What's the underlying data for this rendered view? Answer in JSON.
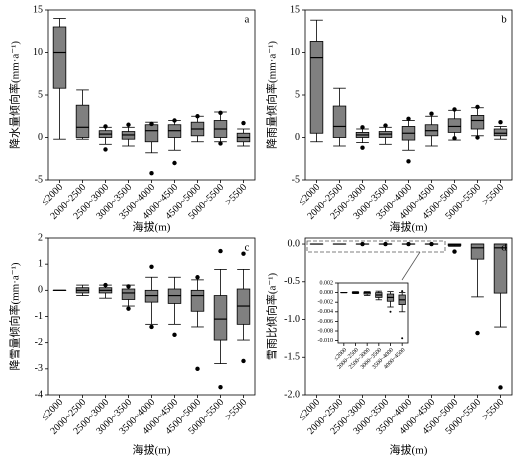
{
  "chart_data": [
    {
      "type": "box",
      "panel_label": "a",
      "ylabel": "降水量倾向率(mm·a⁻¹)",
      "xlabel": "海拔(m)",
      "categories": [
        "≤2000",
        "2000~2500",
        "2500~3000",
        "3000~3500",
        "3500~4000",
        "4000~4500",
        "4500~5000",
        "5000~5500",
        ">5500"
      ],
      "ylim": [
        -5,
        15
      ],
      "yticks": [
        -5,
        0,
        5,
        10,
        15
      ],
      "color": "#808080",
      "boxes": [
        {
          "low": -0.2,
          "q1": 5.8,
          "median": 10,
          "q3": 13,
          "high": 14,
          "outliers": []
        },
        {
          "low": -0.2,
          "q1": 0,
          "median": 1.2,
          "q3": 3.8,
          "high": 5.6,
          "outliers": []
        },
        {
          "low": -0.8,
          "q1": 0,
          "median": 0.4,
          "q3": 0.8,
          "high": 1.2,
          "outliers": [
            -1.4,
            1.3
          ]
        },
        {
          "low": -1,
          "q1": -0.2,
          "median": 0.3,
          "q3": 0.7,
          "high": 1.2,
          "outliers": [
            1.5
          ]
        },
        {
          "low": -1.8,
          "q1": -0.5,
          "median": 0.8,
          "q3": 1.5,
          "high": 1.8,
          "outliers": [
            -4.2,
            1.6
          ]
        },
        {
          "low": -1.5,
          "q1": 0,
          "median": 0.8,
          "q3": 1.5,
          "high": 2,
          "outliers": [
            -3,
            2
          ]
        },
        {
          "low": -0.5,
          "q1": 0.2,
          "median": 1,
          "q3": 1.8,
          "high": 2.5,
          "outliers": [
            2.5
          ]
        },
        {
          "low": -0.5,
          "q1": 0,
          "median": 1,
          "q3": 2,
          "high": 3,
          "outliers": [
            2.9,
            -0.7
          ]
        },
        {
          "low": -1,
          "q1": -0.5,
          "median": 0,
          "q3": 0.5,
          "high": 1,
          "outliers": [
            1.7
          ]
        }
      ]
    },
    {
      "type": "box",
      "panel_label": "b",
      "ylabel": "降雨量倾向率(mm·a⁻¹)",
      "xlabel": "海拔(m)",
      "categories": [
        "≤2000",
        "2000~2500",
        "2500~3000",
        "3000~3500",
        "3500~4000",
        "4000~4500",
        "4500~5000",
        "5000~5500",
        ">5500"
      ],
      "ylim": [
        -5,
        15
      ],
      "yticks": [
        -5,
        0,
        5,
        10,
        15
      ],
      "color": "#808080",
      "boxes": [
        {
          "low": -0.5,
          "q1": 0.5,
          "median": 9.4,
          "q3": 11.3,
          "high": 13.8,
          "outliers": []
        },
        {
          "low": -1,
          "q1": 0,
          "median": 1.3,
          "q3": 3.7,
          "high": 5.8,
          "outliers": []
        },
        {
          "low": -0.6,
          "q1": 0,
          "median": 0.3,
          "q3": 0.6,
          "high": 1,
          "outliers": [
            -1.2,
            1.2
          ]
        },
        {
          "low": -0.8,
          "q1": 0,
          "median": 0.4,
          "q3": 0.7,
          "high": 1.2,
          "outliers": [
            1.4
          ]
        },
        {
          "low": -1.5,
          "q1": -0.3,
          "median": 0.5,
          "q3": 1.3,
          "high": 2,
          "outliers": [
            -2.8,
            2.2
          ]
        },
        {
          "low": -1,
          "q1": 0.2,
          "median": 0.8,
          "q3": 1.5,
          "high": 2.5,
          "outliers": [
            2.8
          ]
        },
        {
          "low": -0.3,
          "q1": 0.6,
          "median": 1.3,
          "q3": 2.2,
          "high": 3.2,
          "outliers": [
            3.3,
            -0.1
          ]
        },
        {
          "low": 0.2,
          "q1": 1,
          "median": 2,
          "q3": 2.6,
          "high": 3.5,
          "outliers": [
            3.6,
            0
          ]
        },
        {
          "low": -0.2,
          "q1": 0.2,
          "median": 0.5,
          "q3": 1,
          "high": 1.3,
          "outliers": [
            1.8
          ]
        }
      ]
    },
    {
      "type": "box",
      "panel_label": "c",
      "ylabel": "降雪量倾向率(mm·a⁻¹)",
      "xlabel": "海拔(m)",
      "categories": [
        "≤2000",
        "2000~2500",
        "2500~3000",
        "3000~3500",
        "3500~4000",
        "4000~4500",
        "4500~5000",
        "5000~5500",
        ">5500"
      ],
      "ylim": [
        -4,
        2
      ],
      "yticks": [
        -4,
        -3,
        -2,
        -1,
        0,
        1,
        2
      ],
      "color": "#808080",
      "boxes": [
        {
          "low": 0,
          "q1": 0,
          "median": 0,
          "q3": 0,
          "high": 0,
          "outliers": []
        },
        {
          "low": -0.2,
          "q1": -0.1,
          "median": 0,
          "q3": 0.1,
          "high": 0.2,
          "outliers": []
        },
        {
          "low": -0.3,
          "q1": -0.1,
          "median": 0,
          "q3": 0.1,
          "high": 0.2,
          "outliers": [
            0.2
          ]
        },
        {
          "low": -0.6,
          "q1": -0.35,
          "median": -0.1,
          "q3": 0.05,
          "high": 0.2,
          "outliers": [
            -0.7,
            0.15
          ]
        },
        {
          "low": -1.3,
          "q1": -0.45,
          "median": -0.2,
          "q3": 0,
          "high": 0.5,
          "outliers": [
            0.9,
            -1.4
          ]
        },
        {
          "low": -1.3,
          "q1": -0.5,
          "median": -0.2,
          "q3": 0.05,
          "high": 0.5,
          "outliers": [
            -1.7
          ]
        },
        {
          "low": -1.4,
          "q1": -0.8,
          "median": -0.2,
          "q3": 0,
          "high": 0.4,
          "outliers": [
            -3,
            0.5
          ]
        },
        {
          "low": -2.8,
          "q1": -1.9,
          "median": -1.1,
          "q3": -0.2,
          "high": 0.8,
          "outliers": [
            -3.7,
            1.5
          ]
        },
        {
          "low": -1.9,
          "q1": -1.3,
          "median": -0.6,
          "q3": 0.05,
          "high": 0.8,
          "outliers": [
            -2.7,
            1.4
          ]
        }
      ]
    },
    {
      "type": "box",
      "panel_label": "d",
      "ylabel": "雪雨比倾向率(a⁻¹)",
      "xlabel": "海拔(m)",
      "categories": [
        "≤2000",
        "2000~2500",
        "2500~3000",
        "3000~3500",
        "3500~4000",
        "4000~4500",
        "4500~5000",
        "5000~5500",
        ">5500"
      ],
      "ylim": [
        -2.0,
        0.08
      ],
      "yticks": [
        {
          "value": -2.0,
          "label": "-2.0"
        },
        {
          "value": -1.5,
          "label": "-1.5"
        },
        {
          "value": -1.0,
          "label": "-1.0"
        },
        {
          "value": -0.5,
          "label": "-0.5"
        },
        {
          "value": 0.0,
          "label": "0.0"
        }
      ],
      "color": "#808080",
      "boxes": [
        {
          "low": 0,
          "q1": 0,
          "median": 0,
          "q3": 0,
          "high": 0,
          "outliers": []
        },
        {
          "low": 0,
          "q1": 0,
          "median": 0,
          "q3": 0,
          "high": 0,
          "outliers": []
        },
        {
          "low": 0,
          "q1": 0,
          "median": 0,
          "q3": 0,
          "high": 0,
          "outliers": [
            0
          ]
        },
        {
          "low": 0,
          "q1": 0,
          "median": 0,
          "q3": 0,
          "high": 0,
          "outliers": [
            0
          ]
        },
        {
          "low": 0,
          "q1": 0,
          "median": 0,
          "q3": 0,
          "high": 0,
          "outliers": [
            0
          ]
        },
        {
          "low": 0,
          "q1": 0,
          "median": 0,
          "q3": 0,
          "high": 0,
          "outliers": [
            0
          ]
        },
        {
          "low": -0.03,
          "q1": -0.02,
          "median": -0.01,
          "q3": 0,
          "high": 0,
          "outliers": [
            -0.1
          ]
        },
        {
          "low": -0.7,
          "q1": -0.2,
          "median": -0.05,
          "q3": 0,
          "high": 0,
          "outliers": [
            -1.18
          ]
        },
        {
          "low": -1.1,
          "q1": -0.65,
          "median": -0.05,
          "q3": 0,
          "high": 0,
          "outliers": [
            -1.9
          ]
        }
      ],
      "inset": {
        "categories": [
          "≤2000",
          "2000~2500",
          "2500~3000",
          "3000~3500",
          "3500~4000",
          "4000~4500"
        ],
        "ylim": [
          -0.0105,
          0.002
        ],
        "yticks": [
          {
            "value": 0.002,
            "label": "0.002"
          },
          {
            "value": 0,
            "label": "0.000"
          },
          {
            "value": -0.002,
            "label": "-0.002"
          },
          {
            "value": -0.004,
            "label": "-0.004"
          },
          {
            "value": -0.006,
            "label": "-0.006"
          },
          {
            "value": -0.008,
            "label": "-0.008"
          },
          {
            "value": -0.01,
            "label": "-0.010"
          }
        ],
        "boxes": [
          {
            "low": 0,
            "q1": 0,
            "median": 0,
            "q3": 0,
            "high": 0,
            "outliers": []
          },
          {
            "low": -0.0002,
            "q1": -0.0001,
            "median": 0,
            "q3": 0.0001,
            "high": 0.0002,
            "outliers": []
          },
          {
            "low": -0.0006,
            "q1": -0.0003,
            "median": 0,
            "q3": 0.0001,
            "high": 0.0002,
            "outliers": []
          },
          {
            "low": -0.0015,
            "q1": -0.001,
            "median": -0.0005,
            "q3": 0,
            "high": 0.0003,
            "outliers": []
          },
          {
            "low": -0.003,
            "q1": -0.0018,
            "median": -0.001,
            "q3": -0.0003,
            "high": 0.0002,
            "outliers": [
              -0.004
            ]
          },
          {
            "low": -0.004,
            "q1": -0.0025,
            "median": -0.0015,
            "q3": -0.0005,
            "high": 0,
            "outliers": [
              -0.0095,
              0.0003
            ]
          }
        ]
      }
    }
  ]
}
